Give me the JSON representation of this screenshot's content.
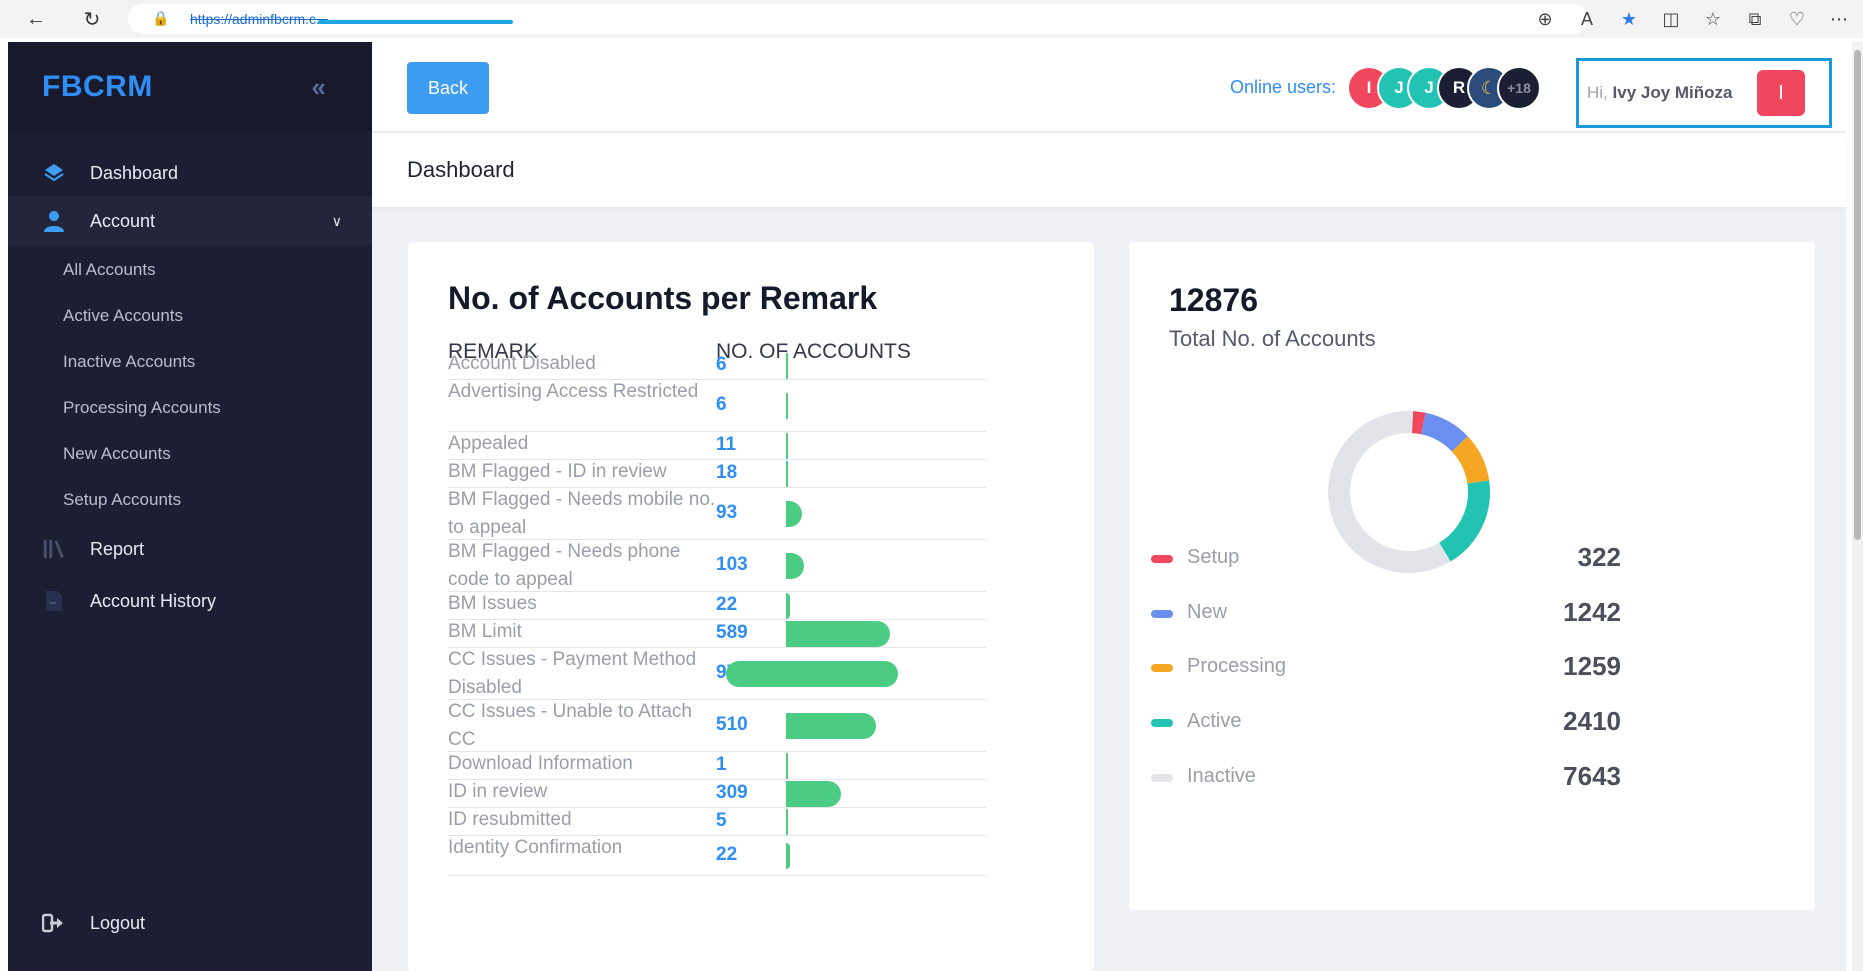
{
  "browser": {
    "url": "https://adminfbcrm.c..."
  },
  "sidebar": {
    "brand": "FBCRM",
    "items": [
      {
        "label": "Dashboard"
      },
      {
        "label": "Account"
      },
      {
        "label": "Report"
      },
      {
        "label": "Account History"
      },
      {
        "label": "Logout"
      }
    ],
    "sub_items": [
      "All Accounts",
      "Active Accounts",
      "Inactive Accounts",
      "Processing Accounts",
      "New Accounts",
      "Setup Accounts"
    ]
  },
  "topbar": {
    "back_label": "Back",
    "online_label": "Online users:",
    "avatars": [
      {
        "letter": "I",
        "color": "#f0475e"
      },
      {
        "letter": "J",
        "color": "#22c3b3"
      },
      {
        "letter": "J",
        "color": "#22c3b3"
      },
      {
        "letter": "R",
        "color": "#1c1f33"
      },
      {
        "letter": "",
        "color": "#2b4c7a"
      },
      {
        "letter": "+18",
        "color": "#1c1f33"
      }
    ],
    "greeting_prefix": "Hi,",
    "user_name": "Ivy Joy Miñoza",
    "user_initial": "I"
  },
  "page": {
    "title": "Dashboard"
  },
  "remarks_card": {
    "title": "No. of Accounts per Remark",
    "col_remark": "REMARK",
    "col_count": "NO. OF ACCOUNTS",
    "rows": [
      {
        "remark": "Account Disabled",
        "count": "6"
      },
      {
        "remark": "Advertising Access Restricted",
        "count": "6"
      },
      {
        "remark": "Appealed",
        "count": "11"
      },
      {
        "remark": "BM Flagged - ID in review",
        "count": "18"
      },
      {
        "remark": "BM Flagged - Needs mobile no. to appeal",
        "count": "93"
      },
      {
        "remark": "BM Flagged - Needs phone code to appeal",
        "count": "103"
      },
      {
        "remark": "BM Issues",
        "count": "22"
      },
      {
        "remark": "BM Limit",
        "count": "589"
      },
      {
        "remark": "CC Issues - Payment Method Disabled",
        "count": "972"
      },
      {
        "remark": "CC Issues - Unable to Attach CC",
        "count": "510"
      },
      {
        "remark": "Download Information",
        "count": "1"
      },
      {
        "remark": "ID in review",
        "count": "309"
      },
      {
        "remark": "ID resubmitted",
        "count": "5"
      },
      {
        "remark": "Identity Confirmation",
        "count": "22"
      }
    ]
  },
  "totals_card": {
    "total": "12876",
    "total_label": "Total No. of Accounts",
    "legend": [
      {
        "name": "Setup",
        "value": "322",
        "color": "#f0475e"
      },
      {
        "name": "New",
        "value": "1242",
        "color": "#6b8ff0"
      },
      {
        "name": "Processing",
        "value": "1259",
        "color": "#f5a623"
      },
      {
        "name": "Active",
        "value": "2410",
        "color": "#22c3b3"
      },
      {
        "name": "Inactive",
        "value": "7643",
        "color": "#e2e4ea"
      }
    ]
  }
}
